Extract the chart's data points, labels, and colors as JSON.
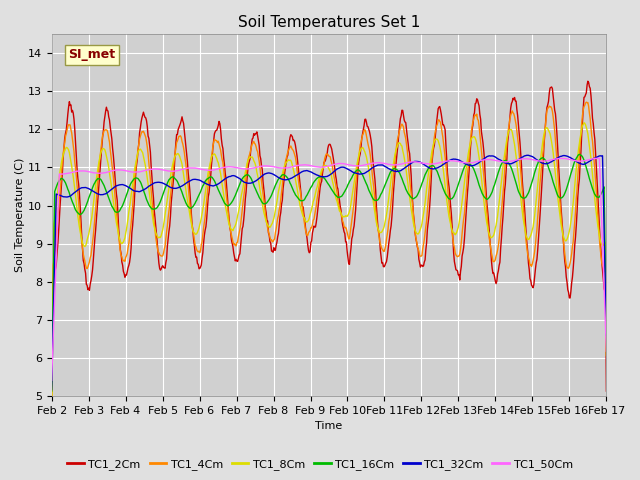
{
  "title": "Soil Temperatures Set 1",
  "xlabel": "Time",
  "ylabel": "Soil Temperature (C)",
  "ylim": [
    5.0,
    14.5
  ],
  "yticks": [
    5.0,
    6.0,
    7.0,
    8.0,
    9.0,
    10.0,
    11.0,
    12.0,
    13.0,
    14.0
  ],
  "series_colors": {
    "TC1_2Cm": "#cc0000",
    "TC1_4Cm": "#ff8800",
    "TC1_8Cm": "#dddd00",
    "TC1_16Cm": "#00bb00",
    "TC1_32Cm": "#0000cc",
    "TC1_50Cm": "#ff66ff"
  },
  "xtick_labels": [
    "Feb 2",
    "Feb 3",
    "Feb 4",
    "Feb 5",
    "Feb 6",
    "Feb 7",
    "Feb 8",
    "Feb 9",
    "Feb 10",
    "Feb 11",
    "Feb 12",
    "Feb 13",
    "Feb 14",
    "Feb 15",
    "Feb 16",
    "Feb 17"
  ],
  "annotation_text": "SI_met",
  "annotation_color": "#880000",
  "annotation_bg": "#ffffcc",
  "background_color": "#e0e0e0",
  "plot_bg": "#d0d0d0",
  "grid_color": "#ffffff",
  "title_fontsize": 11,
  "axis_fontsize": 8,
  "legend_fontsize": 8,
  "figsize": [
    6.4,
    4.8
  ],
  "dpi": 100
}
